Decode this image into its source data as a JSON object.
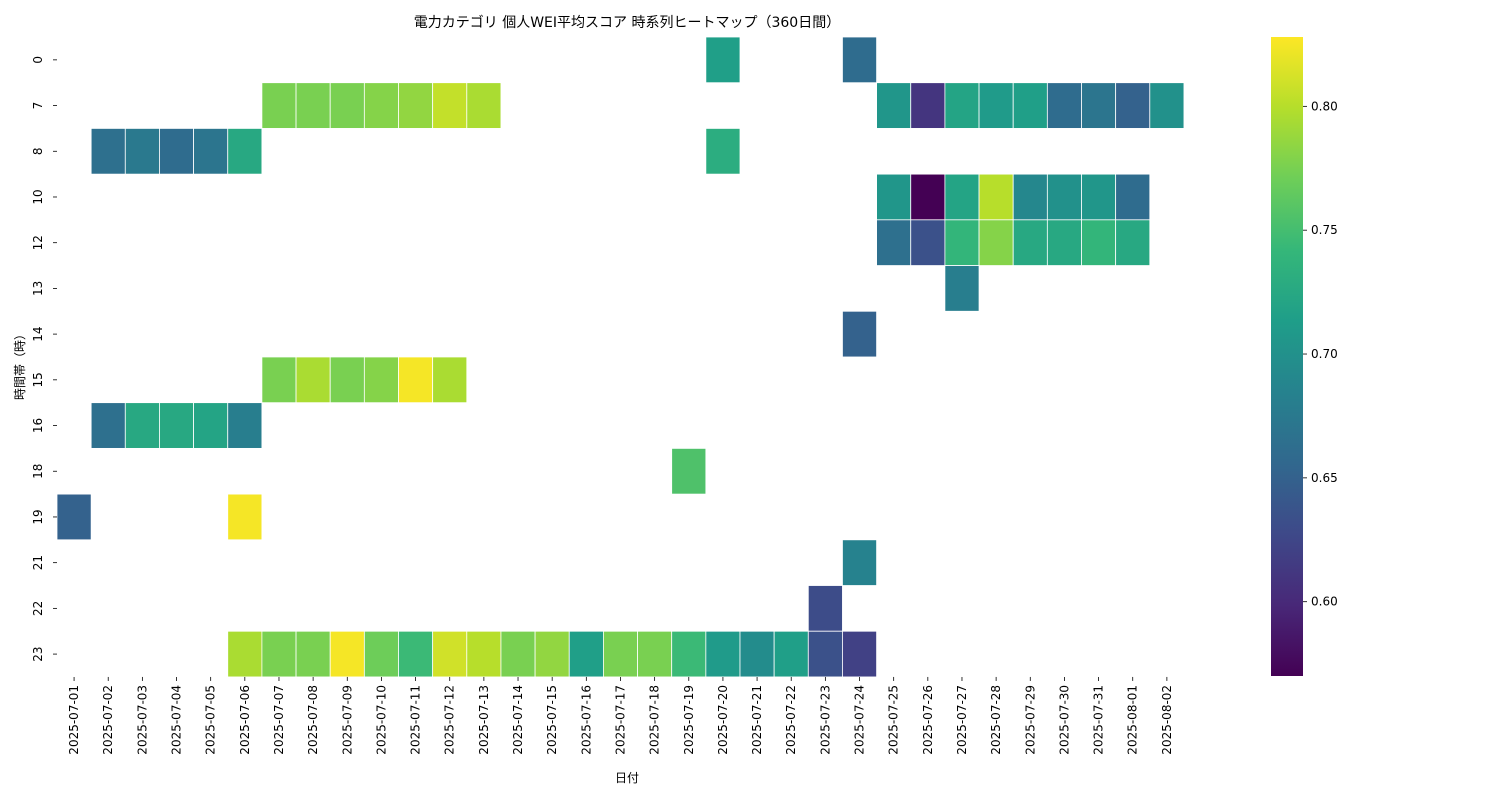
{
  "chart_data": {
    "type": "heatmap",
    "title": "電力カテゴリ 個人WEI平均スコア 時系列ヒートマップ（360日間）",
    "xlabel": "日付",
    "ylabel": "時間帯（時）",
    "x": [
      "2025-07-01",
      "2025-07-02",
      "2025-07-03",
      "2025-07-04",
      "2025-07-05",
      "2025-07-06",
      "2025-07-07",
      "2025-07-08",
      "2025-07-09",
      "2025-07-10",
      "2025-07-11",
      "2025-07-12",
      "2025-07-13",
      "2025-07-14",
      "2025-07-15",
      "2025-07-16",
      "2025-07-17",
      "2025-07-18",
      "2025-07-19",
      "2025-07-20",
      "2025-07-21",
      "2025-07-22",
      "2025-07-23",
      "2025-07-24",
      "2025-07-25",
      "2025-07-26",
      "2025-07-27",
      "2025-07-28",
      "2025-07-29",
      "2025-07-30",
      "2025-07-31",
      "2025-08-01",
      "2025-08-02"
    ],
    "y": [
      "0",
      "7",
      "8",
      "10",
      "12",
      "13",
      "14",
      "15",
      "16",
      "18",
      "19",
      "21",
      "22",
      "23"
    ],
    "values": [
      [
        null,
        null,
        null,
        null,
        null,
        null,
        null,
        null,
        null,
        null,
        null,
        null,
        null,
        null,
        null,
        null,
        null,
        null,
        null,
        0.715,
        null,
        null,
        null,
        0.66,
        null,
        null,
        null,
        null,
        null,
        null,
        null,
        null,
        null
      ],
      [
        null,
        null,
        null,
        null,
        null,
        null,
        0.775,
        0.775,
        0.775,
        0.78,
        0.785,
        0.805,
        0.795,
        null,
        null,
        null,
        null,
        null,
        null,
        null,
        null,
        null,
        null,
        null,
        0.705,
        0.61,
        0.72,
        0.71,
        0.715,
        0.66,
        0.67,
        0.65,
        0.7
      ],
      [
        null,
        0.665,
        0.675,
        0.66,
        0.67,
        0.725,
        null,
        null,
        null,
        null,
        null,
        null,
        null,
        null,
        null,
        null,
        null,
        null,
        null,
        0.73,
        null,
        null,
        null,
        null,
        null,
        null,
        null,
        null,
        null,
        null,
        null,
        null,
        null
      ],
      [
        null,
        null,
        null,
        null,
        null,
        null,
        null,
        null,
        null,
        null,
        null,
        null,
        null,
        null,
        null,
        null,
        null,
        null,
        null,
        null,
        null,
        null,
        null,
        null,
        0.705,
        0.57,
        0.72,
        0.8,
        0.69,
        0.7,
        0.705,
        0.66,
        null
      ],
      [
        null,
        null,
        null,
        null,
        null,
        null,
        null,
        null,
        null,
        null,
        null,
        null,
        null,
        null,
        null,
        null,
        null,
        null,
        null,
        null,
        null,
        null,
        null,
        null,
        0.665,
        0.635,
        0.74,
        0.78,
        0.725,
        0.725,
        0.74,
        0.725,
        null
      ],
      [
        null,
        null,
        null,
        null,
        null,
        null,
        null,
        null,
        null,
        null,
        null,
        null,
        null,
        null,
        null,
        null,
        null,
        null,
        null,
        null,
        null,
        null,
        null,
        null,
        null,
        null,
        0.68,
        null,
        null,
        null,
        null,
        null,
        null
      ],
      [
        null,
        null,
        null,
        null,
        null,
        null,
        null,
        null,
        null,
        null,
        null,
        null,
        null,
        null,
        null,
        null,
        null,
        null,
        null,
        null,
        null,
        null,
        null,
        0.65,
        null,
        null,
        null,
        null,
        null,
        null,
        null,
        null,
        null
      ],
      [
        null,
        null,
        null,
        null,
        null,
        null,
        0.775,
        0.795,
        0.775,
        0.78,
        0.825,
        0.795,
        null,
        null,
        null,
        null,
        null,
        null,
        null,
        null,
        null,
        null,
        null,
        null,
        null,
        null,
        null,
        null,
        null,
        null,
        null,
        null,
        null
      ],
      [
        null,
        0.665,
        0.725,
        0.725,
        0.72,
        0.68,
        null,
        null,
        null,
        null,
        null,
        null,
        null,
        null,
        null,
        null,
        null,
        null,
        null,
        null,
        null,
        null,
        null,
        null,
        null,
        null,
        null,
        null,
        null,
        null,
        null,
        null,
        null
      ],
      [
        null,
        null,
        null,
        null,
        null,
        null,
        null,
        null,
        null,
        null,
        null,
        null,
        null,
        null,
        null,
        null,
        null,
        null,
        0.755,
        null,
        null,
        null,
        null,
        null,
        null,
        null,
        null,
        null,
        null,
        null,
        null,
        null,
        null
      ],
      [
        0.65,
        null,
        null,
        null,
        null,
        0.825,
        null,
        null,
        null,
        null,
        null,
        null,
        null,
        null,
        null,
        null,
        null,
        null,
        null,
        null,
        null,
        null,
        null,
        null,
        null,
        null,
        null,
        null,
        null,
        null,
        null,
        null,
        null
      ],
      [
        null,
        null,
        null,
        null,
        null,
        null,
        null,
        null,
        null,
        null,
        null,
        null,
        null,
        null,
        null,
        null,
        null,
        null,
        null,
        null,
        null,
        null,
        null,
        0.685,
        null,
        null,
        null,
        null,
        null,
        null,
        null,
        null,
        null
      ],
      [
        null,
        null,
        null,
        null,
        null,
        null,
        null,
        null,
        null,
        null,
        null,
        null,
        null,
        null,
        null,
        null,
        null,
        null,
        null,
        null,
        null,
        null,
        0.63,
        null,
        null,
        null,
        null,
        null,
        null,
        null,
        null,
        null,
        null
      ],
      [
        null,
        null,
        null,
        null,
        null,
        0.795,
        0.775,
        0.775,
        0.825,
        0.77,
        0.745,
        0.81,
        0.8,
        0.775,
        0.785,
        0.715,
        0.775,
        0.775,
        0.745,
        0.71,
        0.695,
        0.715,
        0.635,
        0.62,
        null,
        null,
        null,
        null,
        null,
        null,
        null,
        null,
        null
      ]
    ],
    "colormap": "viridis",
    "vmin": 0.57,
    "vmax": 0.828,
    "colorbar_ticks": [
      0.6,
      0.65,
      0.7,
      0.75,
      0.8
    ],
    "colorbar_tick_labels": [
      "0.60",
      "0.65",
      "0.70",
      "0.75",
      "0.80"
    ],
    "grid": false,
    "cell_border_color": "#ffffff"
  }
}
